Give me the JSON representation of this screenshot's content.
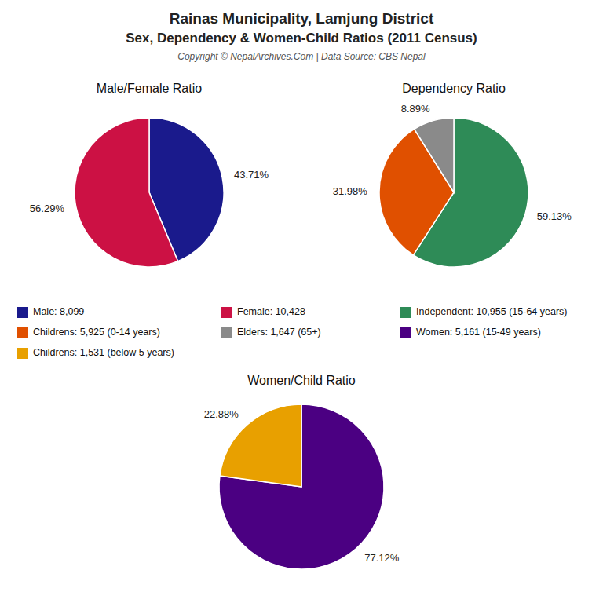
{
  "title": "Rainas Municipality, Lamjung District",
  "subtitle": "Sex, Dependency & Women-Child Ratios (2011 Census)",
  "annotations": [
    "Copyright © NepalArchives.Com | Data Source: CBS Nepal"
  ],
  "chart_data": [
    {
      "type": "pie",
      "title": "Male/Female Ratio",
      "categories": [
        "Male: 8,099",
        "Female: 10,428"
      ],
      "values": [
        43.71,
        56.29
      ],
      "value_labels": [
        "43.71%",
        "56.29%"
      ],
      "colors": [
        "#1a1a8c",
        "#cc1144"
      ],
      "data_labels": true
    },
    {
      "type": "pie",
      "title": "Dependency Ratio",
      "categories": [
        "Independent: 10,955 (15-64 years)",
        "Childrens: 5,925 (0-14 years)",
        "Elders: 1,647 (65+)"
      ],
      "values": [
        59.13,
        31.98,
        8.89
      ],
      "value_labels": [
        "59.13%",
        "31.98%",
        "8.89%"
      ],
      "colors": [
        "#2e8b57",
        "#e05000",
        "#8a8a8a"
      ],
      "data_labels": true
    },
    {
      "type": "pie",
      "title": "Women/Child Ratio",
      "categories": [
        "Women: 5,161 (15-49 years)",
        "Childrens: 1,531 (below 5 years)"
      ],
      "values": [
        77.12,
        22.88
      ],
      "value_labels": [
        "77.12%",
        "22.88%"
      ],
      "colors": [
        "#4b0082",
        "#e8a000"
      ],
      "data_labels": true
    }
  ]
}
